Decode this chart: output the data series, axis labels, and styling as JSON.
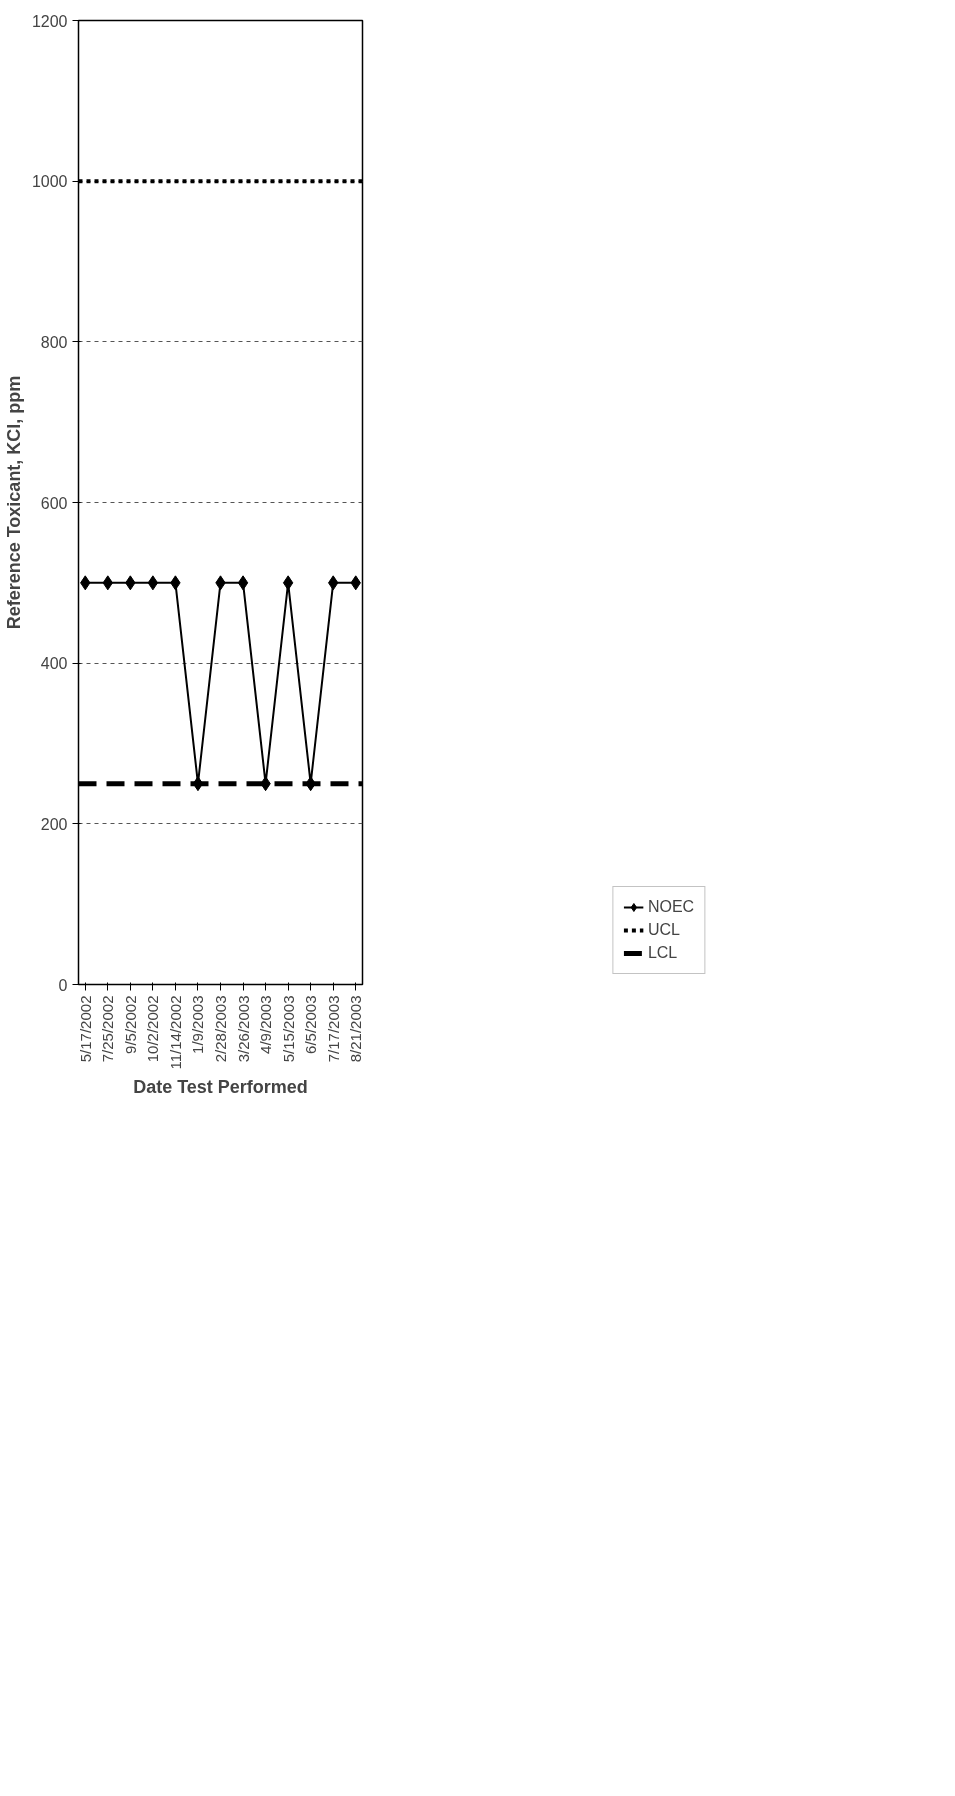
{
  "chart_data": {
    "type": "line",
    "xlabel": "Date Test Performed",
    "ylabel": "Reference Toxicant, KCl, ppm",
    "categories": [
      "5/17/2002",
      "7/25/2002",
      "9/5/2002",
      "10/2/2002",
      "11/14/2002",
      "1/9/2003",
      "2/28/2003",
      "3/26/2003",
      "4/9/2003",
      "5/15/2003",
      "6/5/2003",
      "7/17/2003",
      "8/21/2003"
    ],
    "series": [
      {
        "name": "NOEC",
        "color": "#000000",
        "values": [
          500,
          500,
          500,
          500,
          500,
          250,
          500,
          500,
          250,
          500,
          250,
          500,
          500
        ]
      }
    ],
    "ref_lines": [
      {
        "axis": "y",
        "value": 1000,
        "label": "UCL",
        "color": "#000000",
        "line_style": "dashed"
      },
      {
        "axis": "y",
        "value": 250,
        "label": "LCL",
        "color": "#000000",
        "line_style": "dashed"
      }
    ],
    "ylim": [
      0,
      1200
    ],
    "yticks": [
      0,
      200,
      400,
      600,
      800,
      1000,
      1200
    ],
    "grid": "y",
    "legend": "right",
    "marker": "diamond",
    "line_style": "solid"
  }
}
